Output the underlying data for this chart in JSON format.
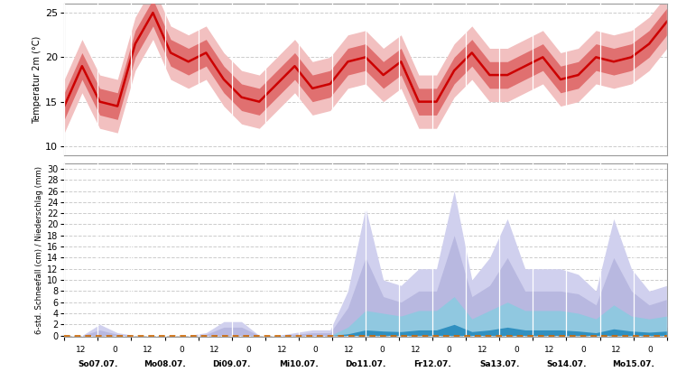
{
  "x_tick_labels_day": [
    "So07.07.",
    "Mo08.07.",
    "Di09.07.",
    "Mi10.07.",
    "Do11.07.",
    "Fr12.07.",
    "Sa13.07.",
    "So14.07.",
    "Mo15.07."
  ],
  "background_color": "#ffffff",
  "temp_mean": [
    14.5,
    19.0,
    15.0,
    14.5,
    21.5,
    25.0,
    20.5,
    19.5,
    20.5,
    17.5,
    15.5,
    15.0,
    17.0,
    19.0,
    16.5,
    17.0,
    19.5,
    20.0,
    18.0,
    19.5,
    15.0,
    15.0,
    18.5,
    20.5,
    18.0,
    18.0,
    19.0,
    20.0,
    17.5,
    18.0,
    20.0,
    19.5,
    20.0,
    21.5,
    24.0
  ],
  "temp_p25": [
    13.0,
    17.5,
    13.5,
    13.0,
    20.0,
    23.5,
    19.0,
    18.0,
    19.0,
    16.0,
    14.0,
    13.5,
    15.5,
    17.5,
    15.0,
    15.5,
    18.0,
    18.5,
    16.5,
    18.0,
    13.5,
    13.5,
    17.0,
    19.0,
    16.5,
    16.5,
    17.5,
    18.5,
    16.0,
    16.5,
    18.5,
    18.0,
    18.5,
    20.0,
    22.5
  ],
  "temp_p75": [
    16.0,
    20.5,
    16.5,
    16.0,
    23.0,
    26.5,
    22.0,
    21.0,
    22.0,
    19.0,
    17.0,
    16.5,
    18.5,
    20.5,
    18.0,
    18.5,
    21.0,
    21.5,
    19.5,
    21.0,
    16.5,
    16.5,
    20.0,
    22.0,
    19.5,
    19.5,
    20.5,
    21.5,
    19.0,
    19.5,
    21.5,
    21.0,
    21.5,
    23.0,
    25.5
  ],
  "temp_p10": [
    11.5,
    16.0,
    12.0,
    11.5,
    18.5,
    22.0,
    17.5,
    16.5,
    17.5,
    14.5,
    12.5,
    12.0,
    14.0,
    16.0,
    13.5,
    14.0,
    16.5,
    17.0,
    15.0,
    16.5,
    12.0,
    12.0,
    15.5,
    17.5,
    15.0,
    15.0,
    16.0,
    17.0,
    14.5,
    15.0,
    17.0,
    16.5,
    17.0,
    18.5,
    21.0
  ],
  "temp_p90": [
    17.5,
    22.0,
    18.0,
    17.5,
    24.5,
    28.0,
    23.5,
    22.5,
    23.5,
    20.5,
    18.5,
    18.0,
    20.0,
    22.0,
    19.5,
    20.0,
    22.5,
    23.0,
    21.0,
    22.5,
    18.0,
    18.0,
    21.5,
    23.5,
    21.0,
    21.0,
    22.0,
    23.0,
    20.5,
    21.0,
    23.0,
    22.5,
    23.0,
    24.5,
    27.0
  ],
  "prec_p90": [
    0.0,
    0.0,
    2.0,
    0.5,
    0.0,
    0.0,
    0.0,
    0.0,
    0.5,
    2.5,
    2.5,
    0.0,
    0.0,
    0.5,
    1.0,
    1.0,
    8.0,
    23.0,
    10.0,
    9.0,
    12.0,
    12.0,
    26.0,
    10.0,
    14.0,
    21.0,
    12.0,
    12.0,
    12.0,
    11.0,
    8.0,
    21.0,
    12.0,
    8.0,
    9.0
  ],
  "prec_p75": [
    0.0,
    0.0,
    1.0,
    0.2,
    0.0,
    0.0,
    0.0,
    0.0,
    0.2,
    1.5,
    1.5,
    0.0,
    0.0,
    0.2,
    0.5,
    0.5,
    5.0,
    14.0,
    7.0,
    6.0,
    8.0,
    8.0,
    18.0,
    7.0,
    9.0,
    14.0,
    8.0,
    8.0,
    8.0,
    7.5,
    5.5,
    14.0,
    8.0,
    5.5,
    6.5
  ],
  "prec_median": [
    0.0,
    0.0,
    0.4,
    0.0,
    0.0,
    0.0,
    0.0,
    0.0,
    0.0,
    0.5,
    0.5,
    0.0,
    0.0,
    0.0,
    0.2,
    0.2,
    3.0,
    7.0,
    4.0,
    3.5,
    5.0,
    5.0,
    11.0,
    4.0,
    5.5,
    8.0,
    5.0,
    5.5,
    5.0,
    4.5,
    3.0,
    8.0,
    5.0,
    3.5,
    4.0
  ],
  "prec_p25": [
    0.0,
    0.0,
    0.0,
    0.0,
    0.0,
    0.0,
    0.0,
    0.0,
    0.0,
    0.0,
    0.0,
    0.0,
    0.0,
    0.0,
    0.0,
    0.0,
    1.0,
    3.0,
    1.5,
    1.5,
    2.5,
    2.5,
    6.0,
    1.5,
    2.5,
    3.5,
    2.0,
    2.5,
    2.0,
    2.0,
    1.2,
    3.5,
    2.0,
    1.5,
    1.5
  ],
  "prec_p10": [
    0.0,
    0.0,
    0.0,
    0.0,
    0.0,
    0.0,
    0.0,
    0.0,
    0.0,
    0.0,
    0.0,
    0.0,
    0.0,
    0.0,
    0.0,
    0.0,
    0.0,
    0.5,
    0.5,
    0.5,
    0.8,
    0.8,
    2.0,
    0.5,
    0.8,
    1.0,
    0.5,
    0.8,
    0.5,
    0.5,
    0.3,
    0.8,
    0.5,
    0.5,
    0.5
  ],
  "snow_p75": [
    0.0,
    0.0,
    0.0,
    0.0,
    0.0,
    0.0,
    0.0,
    0.0,
    0.0,
    0.0,
    0.0,
    0.0,
    0.0,
    0.0,
    0.0,
    0.0,
    1.5,
    4.5,
    4.0,
    3.5,
    4.5,
    4.5,
    7.0,
    3.0,
    4.5,
    6.0,
    4.5,
    4.5,
    4.5,
    4.0,
    3.0,
    5.5,
    3.5,
    3.0,
    3.5
  ],
  "snow_median": [
    0.0,
    0.0,
    0.0,
    0.0,
    0.0,
    0.0,
    0.0,
    0.0,
    0.0,
    0.0,
    0.0,
    0.0,
    0.0,
    0.0,
    0.0,
    0.0,
    0.8,
    2.5,
    2.0,
    1.8,
    2.5,
    2.5,
    4.5,
    1.5,
    2.5,
    3.5,
    2.5,
    2.5,
    2.5,
    2.0,
    1.5,
    3.0,
    2.0,
    1.5,
    2.0
  ],
  "snow_dark": [
    0.0,
    0.0,
    0.0,
    0.0,
    0.0,
    0.0,
    0.0,
    0.0,
    0.0,
    0.0,
    0.0,
    0.0,
    0.0,
    0.0,
    0.0,
    0.0,
    0.3,
    1.0,
    0.8,
    0.7,
    1.0,
    1.0,
    2.0,
    0.7,
    1.0,
    1.5,
    1.0,
    1.0,
    1.0,
    0.8,
    0.5,
    1.2,
    0.8,
    0.6,
    0.8
  ],
  "colors": {
    "temp_line": "#cc0000",
    "temp_band_inner": "#e07070",
    "temp_band_outer": "#f2c0c0",
    "prec_fill_outer": "#d0d0ee",
    "prec_fill_mid": "#b8b8e0",
    "snow_fill_light": "#90c8e0",
    "snow_fill_dark": "#3090c0",
    "zero_line": "#cc6600",
    "grid_color": "#cccccc",
    "vline_color": "#ffffff",
    "spine_color": "#999999"
  },
  "temp_ylim": [
    9.0,
    26.0
  ],
  "temp_yticks": [
    10,
    15,
    20,
    25
  ],
  "prec_ylim": [
    -0.3,
    31.0
  ],
  "prec_yticks": [
    0,
    2,
    4,
    6,
    8,
    10,
    12,
    14,
    16,
    18,
    20,
    22,
    24,
    26,
    28,
    30
  ],
  "ylabel_temp": "Temperatur 2m (°C)",
  "ylabel_prec": "6-std. Schneefall (cm) / Niederschlag (mm)",
  "n_days": 9,
  "n_halfdays_per_day": 2,
  "total_halfdays": 18
}
